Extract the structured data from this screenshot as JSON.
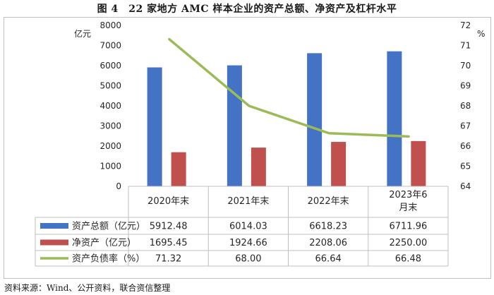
{
  "title": "图 4　22 家地方 AMC 样本企业的资产总额、净资产及杠杆水平",
  "source": "资料来源：Wind、公开资料，联合资信整理",
  "chart_data": {
    "type": "bar",
    "categories": [
      "2020年末",
      "2021年末",
      "2022年末",
      "2023年6月末"
    ],
    "category_lines": [
      [
        "2020年末"
      ],
      [
        "2021年末"
      ],
      [
        "2022年末"
      ],
      [
        "2023年6",
        "月末"
      ]
    ],
    "y_left": {
      "unit": "亿元",
      "ylim": [
        0,
        8000
      ],
      "ticks": [
        0,
        1000,
        2000,
        3000,
        4000,
        5000,
        6000,
        7000,
        8000
      ]
    },
    "y_right": {
      "unit": "%",
      "ylim": [
        64,
        72
      ],
      "ticks": [
        64,
        65,
        66,
        67,
        68,
        69,
        70,
        71,
        72
      ]
    },
    "series": [
      {
        "name": "资产总额（亿元）",
        "type": "bar",
        "axis": "left",
        "color": "#4472C4",
        "values": [
          5912.48,
          6014.03,
          6618.23,
          6711.96
        ],
        "labels": [
          "5912.48",
          "6014.03",
          "6618.23",
          "6711.96"
        ]
      },
      {
        "name": "净资产（亿元）",
        "type": "bar",
        "axis": "left",
        "color": "#C0504D",
        "values": [
          1695.45,
          1924.66,
          2208.06,
          2250.0
        ],
        "labels": [
          "1695.45",
          "1924.66",
          "2208.06",
          "2250.00"
        ]
      },
      {
        "name": "资产负债率（%）",
        "type": "line",
        "axis": "right",
        "color": "#9BBB59",
        "values": [
          71.32,
          68.0,
          66.64,
          66.48
        ],
        "labels": [
          "71.32",
          "68.00",
          "66.64",
          "66.48"
        ]
      }
    ],
    "grid": false,
    "legend": "data-table"
  }
}
